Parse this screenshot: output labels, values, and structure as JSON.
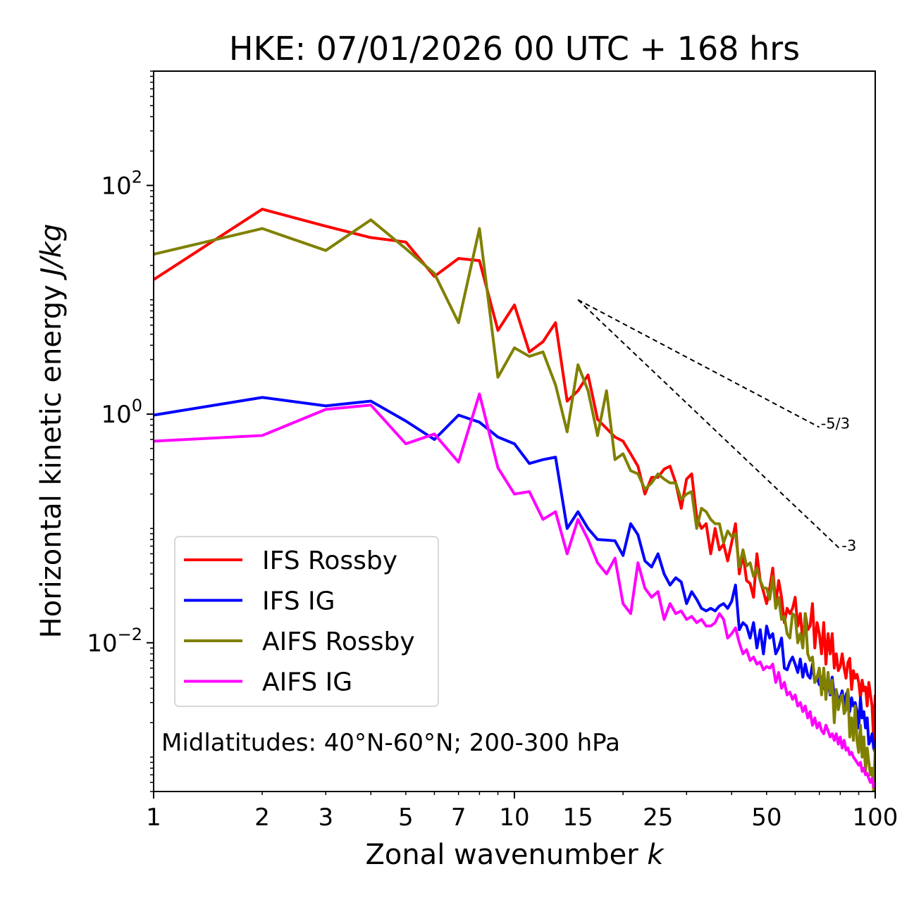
{
  "chart_data": {
    "type": "line",
    "title": "HKE: 07/01/2026 00 UTC + 168 hrs",
    "xlabel": "Zonal wavenumber",
    "xlabel_var": "k",
    "ylabel": "Horizontal kinetic energy",
    "ylabel_unit": "J/kg",
    "xscale": "log",
    "yscale": "log",
    "xlim": [
      1,
      100
    ],
    "ylim": [
      0.0005,
      1000
    ],
    "x_ticks": [
      {
        "value": 1,
        "label": "1"
      },
      {
        "value": 2,
        "label": "2"
      },
      {
        "value": 3,
        "label": "3"
      },
      {
        "value": 5,
        "label": "5"
      },
      {
        "value": 7,
        "label": "7"
      },
      {
        "value": 10,
        "label": "10"
      },
      {
        "value": 15,
        "label": "15"
      },
      {
        "value": 25,
        "label": "25"
      },
      {
        "value": 50,
        "label": "50"
      },
      {
        "value": 100,
        "label": "100"
      }
    ],
    "y_ticks": [
      {
        "value": 100,
        "base": "10",
        "exp": "2"
      },
      {
        "value": 1,
        "base": "10",
        "exp": "0"
      },
      {
        "value": 0.01,
        "base": "10",
        "exp": "−2"
      }
    ],
    "annotation": "Midlatitudes: 40°N-60°N; 200-300 hPa",
    "legend_position": "lower-left",
    "reference_slopes": [
      {
        "label": "-5/3",
        "slope": -1.6667,
        "x0": 15,
        "y0": 10,
        "x1": 70
      },
      {
        "label": "-3",
        "slope": -3,
        "x0": 15,
        "y0": 10,
        "x1": 80
      }
    ],
    "series": [
      {
        "name": "IFS Rossby",
        "color": "#ff0000",
        "values": [
          15,
          62,
          44,
          35,
          32,
          16,
          23,
          22,
          5.4,
          9,
          3.5,
          4.3,
          6.3,
          1.3,
          1.6,
          2.2,
          0.9,
          0.75,
          0.63,
          0.58,
          0.45,
          0.35,
          0.2,
          0.28,
          0.28,
          0.33,
          0.35,
          0.25,
          0.15,
          0.27,
          0.3,
          0.125,
          0.1,
          0.11,
          0.06,
          0.1,
          0.065,
          0.073,
          0.052,
          0.075,
          0.11,
          0.04,
          0.06,
          0.035,
          0.033,
          0.025,
          0.06,
          0.035,
          0.028,
          0.022,
          0.03,
          0.045,
          0.022,
          0.035,
          0.025,
          0.015,
          0.02,
          0.018,
          0.02,
          0.025,
          0.014,
          0.018,
          0.01,
          0.018,
          0.013,
          0.014,
          0.022,
          0.009,
          0.015,
          0.012,
          0.008,
          0.015,
          0.0065,
          0.012,
          0.008,
          0.012,
          0.006,
          0.008,
          0.0057,
          0.0062,
          0.008,
          0.006,
          0.0049,
          0.0067,
          0.0073,
          0.0039,
          0.0057,
          0.0049,
          0.0053,
          0.0045,
          0.0033,
          0.0047,
          0.0038,
          0.0041,
          0.0028,
          0.0045,
          0.0035,
          0.0028,
          0.0014,
          0.0035
        ]
      },
      {
        "name": "IFS IG",
        "color": "#0000ff",
        "values": [
          0.98,
          1.4,
          1.18,
          1.3,
          0.87,
          0.6,
          0.98,
          0.85,
          0.63,
          0.55,
          0.37,
          0.4,
          0.42,
          0.1,
          0.14,
          0.1,
          0.08,
          0.079,
          0.078,
          0.058,
          0.11,
          0.088,
          0.052,
          0.046,
          0.06,
          0.04,
          0.032,
          0.037,
          0.034,
          0.022,
          0.028,
          0.024,
          0.02,
          0.019,
          0.02,
          0.019,
          0.021,
          0.022,
          0.02,
          0.023,
          0.032,
          0.013,
          0.015,
          0.014,
          0.011,
          0.015,
          0.009,
          0.013,
          0.008,
          0.014,
          0.011,
          0.012,
          0.008,
          0.009,
          0.011,
          0.006,
          0.0058,
          0.0068,
          0.0075,
          0.0065,
          0.0055,
          0.0072,
          0.005,
          0.0065,
          0.0052,
          0.0049,
          0.0065,
          0.0045,
          0.005,
          0.0043,
          0.005,
          0.004,
          0.0039,
          0.0046,
          0.0035,
          0.005,
          0.0034,
          0.0038,
          0.0032,
          0.0033,
          0.0038,
          0.0028,
          0.0035,
          0.0038,
          0.0025,
          0.0033,
          0.0028,
          0.003,
          0.0025,
          0.0018,
          0.0033,
          0.0022,
          0.0025,
          0.0018,
          0.0022,
          0.0013,
          0.0014,
          0.0016,
          0.0012,
          0.0011
        ]
      },
      {
        "name": "AIFS Rossby",
        "color": "#808000",
        "values": [
          25,
          42,
          27,
          50,
          28,
          17,
          6.3,
          42,
          2.1,
          3.8,
          3.2,
          3.5,
          1.8,
          0.7,
          2.7,
          1.6,
          0.65,
          1.6,
          0.4,
          0.45,
          0.32,
          0.3,
          0.22,
          0.25,
          0.3,
          0.27,
          0.25,
          0.25,
          0.18,
          0.2,
          0.21,
          0.1,
          0.15,
          0.14,
          0.12,
          0.11,
          0.11,
          0.075,
          0.095,
          0.085,
          0.09,
          0.046,
          0.065,
          0.047,
          0.05,
          0.038,
          0.045,
          0.035,
          0.03,
          0.03,
          0.024,
          0.038,
          0.02,
          0.025,
          0.016,
          0.017,
          0.012,
          0.011,
          0.018,
          0.017,
          0.01,
          0.012,
          0.009,
          0.018,
          0.008,
          0.007,
          0.0075,
          0.0045,
          0.005,
          0.006,
          0.0035,
          0.006,
          0.0032,
          0.0055,
          0.0036,
          0.0047,
          0.002,
          0.0039,
          0.0026,
          0.0032,
          0.0035,
          0.0024,
          0.0026,
          0.0039,
          0.0015,
          0.0022,
          0.0014,
          0.0028,
          0.0014,
          0.0011,
          0.0019,
          0.001,
          0.0015,
          0.00075,
          0.0012,
          0.0009,
          0.0007,
          0.0008,
          0.0005,
          0.0012
        ]
      },
      {
        "name": "AIFS IG",
        "color": "#ff00ff",
        "values": [
          0.58,
          0.65,
          1.1,
          1.2,
          0.55,
          0.67,
          0.38,
          1.5,
          0.34,
          0.2,
          0.21,
          0.12,
          0.14,
          0.06,
          0.12,
          0.08,
          0.05,
          0.04,
          0.055,
          0.022,
          0.018,
          0.05,
          0.03,
          0.025,
          0.028,
          0.016,
          0.022,
          0.018,
          0.019,
          0.016,
          0.017,
          0.015,
          0.016,
          0.014,
          0.014,
          0.015,
          0.018,
          0.016,
          0.011,
          0.012,
          0.0135,
          0.01,
          0.008,
          0.0087,
          0.007,
          0.0075,
          0.0065,
          0.0068,
          0.0058,
          0.0062,
          0.006,
          0.0065,
          0.0045,
          0.0055,
          0.004,
          0.0045,
          0.0035,
          0.0037,
          0.0032,
          0.0035,
          0.0028,
          0.003,
          0.0025,
          0.0028,
          0.0022,
          0.0025,
          0.0019,
          0.0022,
          0.0018,
          0.002,
          0.0017,
          0.0016,
          0.0019,
          0.0017,
          0.0015,
          0.0016,
          0.0014,
          0.0016,
          0.0013,
          0.0015,
          0.0012,
          0.0014,
          0.00115,
          0.0012,
          0.00105,
          0.0011,
          0.001,
          0.00095,
          0.0009,
          0.00085,
          0.0009,
          0.00075,
          0.0008,
          0.0007,
          0.00072,
          0.00065,
          0.0006,
          0.00065,
          0.00055,
          0.0006
        ]
      }
    ]
  }
}
